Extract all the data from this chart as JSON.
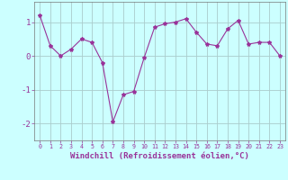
{
  "x": [
    0,
    1,
    2,
    3,
    4,
    5,
    6,
    7,
    8,
    9,
    10,
    11,
    12,
    13,
    14,
    15,
    16,
    17,
    18,
    19,
    20,
    21,
    22,
    23
  ],
  "y": [
    1.2,
    0.3,
    0.0,
    0.2,
    0.5,
    0.4,
    -0.2,
    -1.95,
    -1.15,
    -1.05,
    -0.05,
    0.85,
    0.95,
    1.0,
    1.1,
    0.7,
    0.35,
    0.3,
    0.8,
    1.05,
    0.35,
    0.4,
    0.4,
    0.0
  ],
  "line_color": "#993399",
  "marker": "*",
  "marker_size": 3,
  "bg_color": "#ccffff",
  "grid_color": "#aacccc",
  "xlabel": "Windchill (Refroidissement éolien,°C)",
  "xlabel_fontsize": 6.5,
  "ylabel_ticks": [
    -2,
    -1,
    0,
    1
  ],
  "xlim": [
    -0.5,
    23.5
  ],
  "ylim": [
    -2.5,
    1.6
  ],
  "xtick_fontsize": 4.8,
  "ytick_fontsize": 6.5
}
